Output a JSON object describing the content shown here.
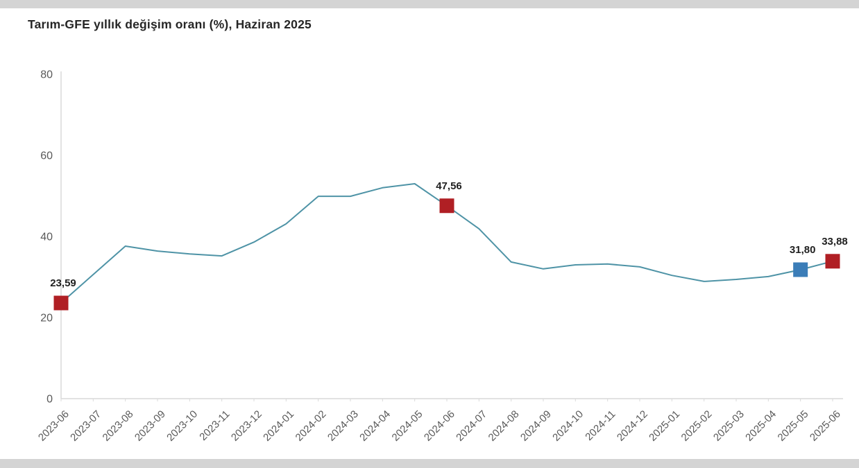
{
  "header": {
    "title": "Tarım-GFE yıllık değişim oranı (%), Haziran 2025"
  },
  "chart_data": {
    "type": "line",
    "title": "Tarım-GFE yıllık değişim oranı (%), Haziran 2025",
    "xlabel": "",
    "ylabel": "",
    "ylim": [
      0,
      80
    ],
    "yticks": [
      0,
      20,
      40,
      60,
      80
    ],
    "grid": false,
    "legend_position": "none",
    "x": [
      "2023-06",
      "2023-07",
      "2023-08",
      "2023-09",
      "2023-10",
      "2023-11",
      "2023-12",
      "2024-01",
      "2024-02",
      "2024-03",
      "2024-04",
      "2024-05",
      "2024-06",
      "2024-07",
      "2024-08",
      "2024-09",
      "2024-10",
      "2024-11",
      "2024-12",
      "2025-01",
      "2025-02",
      "2025-03",
      "2025-04",
      "2025-05",
      "2025-06"
    ],
    "series": [
      {
        "name": "Tarım-GFE yıllık değişim oranı (%)",
        "values": [
          23.59,
          30.6,
          37.6,
          36.4,
          35.7,
          35.2,
          38.6,
          43.1,
          49.9,
          49.9,
          52.0,
          53.0,
          47.56,
          41.9,
          33.7,
          32.0,
          33.0,
          33.2,
          32.5,
          30.4,
          28.9,
          29.4,
          30.1,
          31.8,
          33.88
        ]
      }
    ],
    "annotations": [
      {
        "x": "2023-06",
        "value": 23.59,
        "label": "23,59",
        "marker": "square",
        "color": "#b01f24"
      },
      {
        "x": "2024-06",
        "value": 47.56,
        "label": "47,56",
        "marker": "square",
        "color": "#b01f24"
      },
      {
        "x": "2025-05",
        "value": 31.8,
        "label": "31,80",
        "marker": "square",
        "color": "#3b7db8"
      },
      {
        "x": "2025-06",
        "value": 33.88,
        "label": "33,88",
        "marker": "square",
        "color": "#b01f24"
      }
    ],
    "colors": {
      "line": "#4e93a6",
      "marker_red": "#b01f24",
      "marker_blue": "#3b7db8",
      "axis": "#d9d9d9",
      "tick_label": "#595959",
      "data_label": "#1f1f1f",
      "title": "#262626",
      "frame": "#d4d4d4",
      "background": "#ffffff"
    }
  }
}
